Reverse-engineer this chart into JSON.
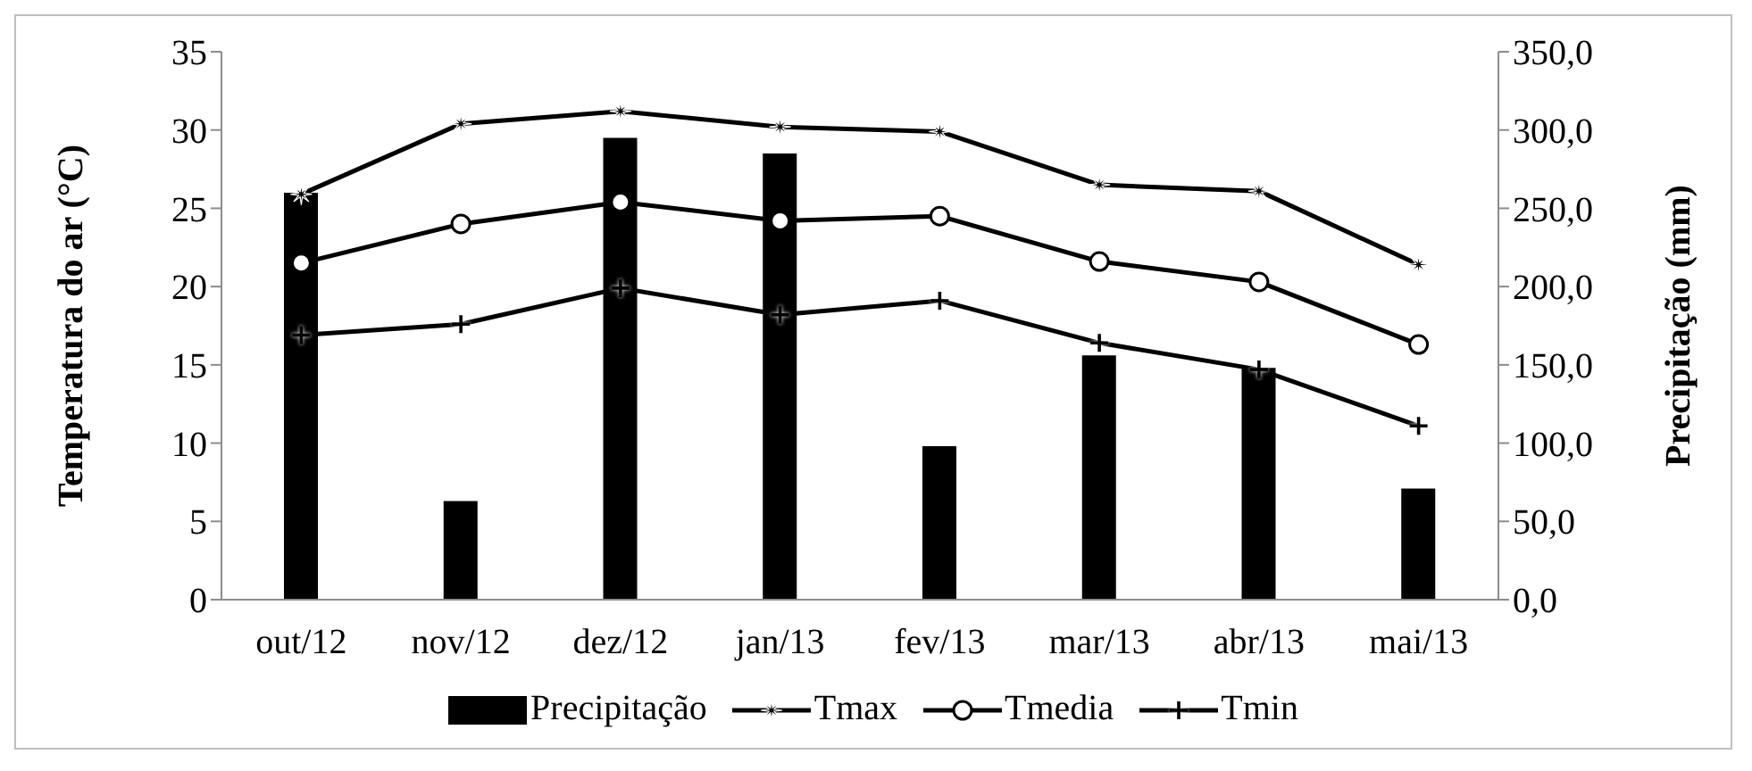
{
  "chart_data": {
    "type": "line",
    "categories": [
      "out/12",
      "nov/12",
      "dez/12",
      "jan/13",
      "fev/13",
      "mar/13",
      "abr/13",
      "mai/13"
    ],
    "ylabel": "Temperatura do ar (°C)",
    "y2label": "Precipitação (mm)",
    "series": [
      {
        "name": "Precipitação",
        "type": "bar",
        "axis": "y2",
        "color": "#000000",
        "values": [
          260,
          63,
          295,
          285,
          98,
          156,
          148,
          71
        ]
      },
      {
        "name": "Tmax",
        "color": "#000000",
        "marker": "star",
        "values": [
          25.9,
          30.4,
          31.2,
          30.2,
          29.9,
          26.5,
          26.1,
          21.4
        ]
      },
      {
        "name": "Tmedia",
        "color": "#000000",
        "marker": "circle",
        "values": [
          21.5,
          24.0,
          25.4,
          24.2,
          24.5,
          21.6,
          20.3,
          16.3
        ]
      },
      {
        "name": "Tmin",
        "color": "#000000",
        "marker": "cross",
        "values": [
          16.9,
          17.6,
          19.9,
          18.2,
          19.1,
          16.4,
          14.7,
          11.1
        ]
      }
    ],
    "ylim": [
      0,
      35
    ],
    "yticks": [
      0,
      5,
      10,
      15,
      20,
      25,
      30,
      35
    ],
    "y2lim": [
      0,
      350
    ],
    "y2ticks": [
      {
        "value": 0,
        "label": "0,0"
      },
      {
        "value": 50,
        "label": "50,0"
      },
      {
        "value": 100,
        "label": "100,0"
      },
      {
        "value": 150,
        "label": "150,0"
      },
      {
        "value": 200,
        "label": "200,0"
      },
      {
        "value": 250,
        "label": "250,0"
      },
      {
        "value": 300,
        "label": "300,0"
      },
      {
        "value": 350,
        "label": "350,0"
      }
    ],
    "grid": false,
    "legend": "bottom"
  }
}
